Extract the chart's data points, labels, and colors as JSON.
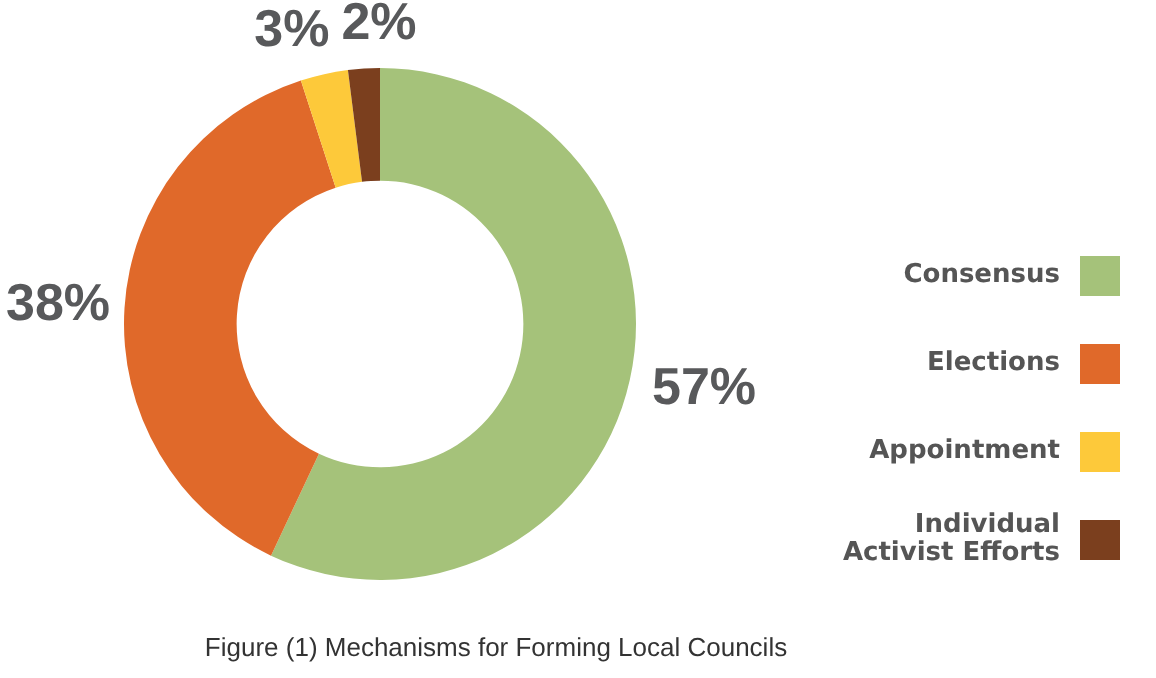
{
  "chart_data": {
    "type": "donut",
    "title": "Figure (1) Mechanisms for Forming Local Councils",
    "categories": [
      "Consensus",
      "Elections",
      "Appointment",
      "Individual Activist Efforts"
    ],
    "values": [
      57,
      38,
      3,
      2
    ],
    "colors": [
      "#a5c27a",
      "#e0692a",
      "#fdc93a",
      "#7b3f1e"
    ],
    "value_labels": [
      "57%",
      "38%",
      "3%",
      "2%"
    ],
    "legend": "right"
  }
}
